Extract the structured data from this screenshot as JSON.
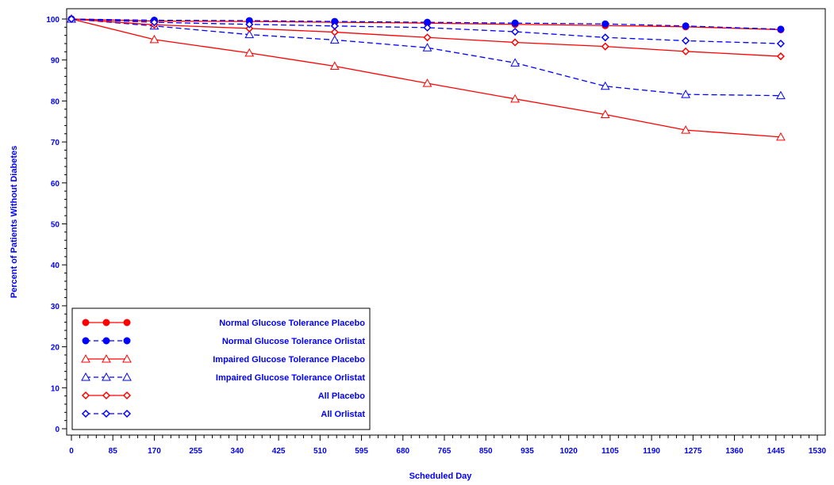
{
  "chart_data": {
    "type": "line",
    "title": "",
    "xlabel": "Scheduled Day",
    "ylabel": "Percent of Patients Without Diabetes",
    "xlim": [
      0,
      1530
    ],
    "ylim": [
      0,
      100
    ],
    "x_ticks": [
      0,
      85,
      170,
      255,
      340,
      425,
      510,
      595,
      680,
      765,
      850,
      935,
      1020,
      1105,
      1190,
      1275,
      1360,
      1445,
      1530
    ],
    "x_tick_labels": [
      "0",
      "85",
      "170",
      "255",
      "340",
      "425",
      "510",
      "595",
      "680",
      "765",
      "850",
      "935",
      "1020",
      "1105",
      "1190",
      "1275",
      "1360",
      "1445",
      "1530"
    ],
    "y_ticks": [
      0,
      10,
      20,
      30,
      40,
      50,
      60,
      70,
      80,
      90,
      100
    ],
    "y_tick_labels": [
      "0",
      "10",
      "20",
      "30",
      "40",
      "50",
      "60",
      "70",
      "80",
      "90",
      "100"
    ],
    "grid": false,
    "legend_position": "bottom-left",
    "series": [
      {
        "name": "Normal Glucose Tolerance Placebo",
        "color": "#ff0000",
        "marker": "filled-circle",
        "dash": "solid",
        "x": [
          0,
          170,
          365,
          540,
          730,
          910,
          1095,
          1260,
          1455
        ],
        "y": [
          100,
          99.5,
          99.4,
          99.2,
          99.0,
          98.7,
          98.4,
          98.1,
          97.4
        ]
      },
      {
        "name": "Normal Glucose Tolerance Orlistat",
        "color": "#0000ff",
        "marker": "filled-circle",
        "dash": "dashed",
        "x": [
          0,
          170,
          365,
          540,
          730,
          910,
          1095,
          1260,
          1455
        ],
        "y": [
          100,
          99.7,
          99.6,
          99.4,
          99.2,
          99.0,
          98.8,
          98.3,
          97.5
        ]
      },
      {
        "name": "Impaired Glucose Tolerance Placebo",
        "color": "#ff0000",
        "marker": "triangle",
        "dash": "solid",
        "x": [
          0,
          170,
          365,
          540,
          730,
          910,
          1095,
          1260,
          1455
        ],
        "y": [
          100,
          95.0,
          91.7,
          88.5,
          84.3,
          80.5,
          76.7,
          72.9,
          71.2
        ]
      },
      {
        "name": "Impaired Glucose Tolerance Orlistat",
        "color": "#0000ff",
        "marker": "triangle",
        "dash": "dashed",
        "x": [
          0,
          170,
          365,
          540,
          730,
          910,
          1095,
          1260,
          1455
        ],
        "y": [
          100,
          98.3,
          96.2,
          94.9,
          93.0,
          89.3,
          83.6,
          81.6,
          81.3
        ]
      },
      {
        "name": "All Placebo",
        "color": "#ff0000",
        "marker": "diamond",
        "dash": "solid",
        "x": [
          0,
          170,
          365,
          540,
          730,
          910,
          1095,
          1260,
          1455
        ],
        "y": [
          100,
          98.6,
          97.7,
          96.8,
          95.5,
          94.3,
          93.3,
          92.1,
          90.9
        ]
      },
      {
        "name": "All Orlistat",
        "color": "#0000ff",
        "marker": "diamond",
        "dash": "dashed",
        "x": [
          0,
          170,
          365,
          540,
          730,
          910,
          1095,
          1260,
          1455
        ],
        "y": [
          100,
          99.2,
          98.7,
          98.3,
          97.9,
          96.9,
          95.5,
          94.7,
          94.0
        ]
      }
    ]
  }
}
